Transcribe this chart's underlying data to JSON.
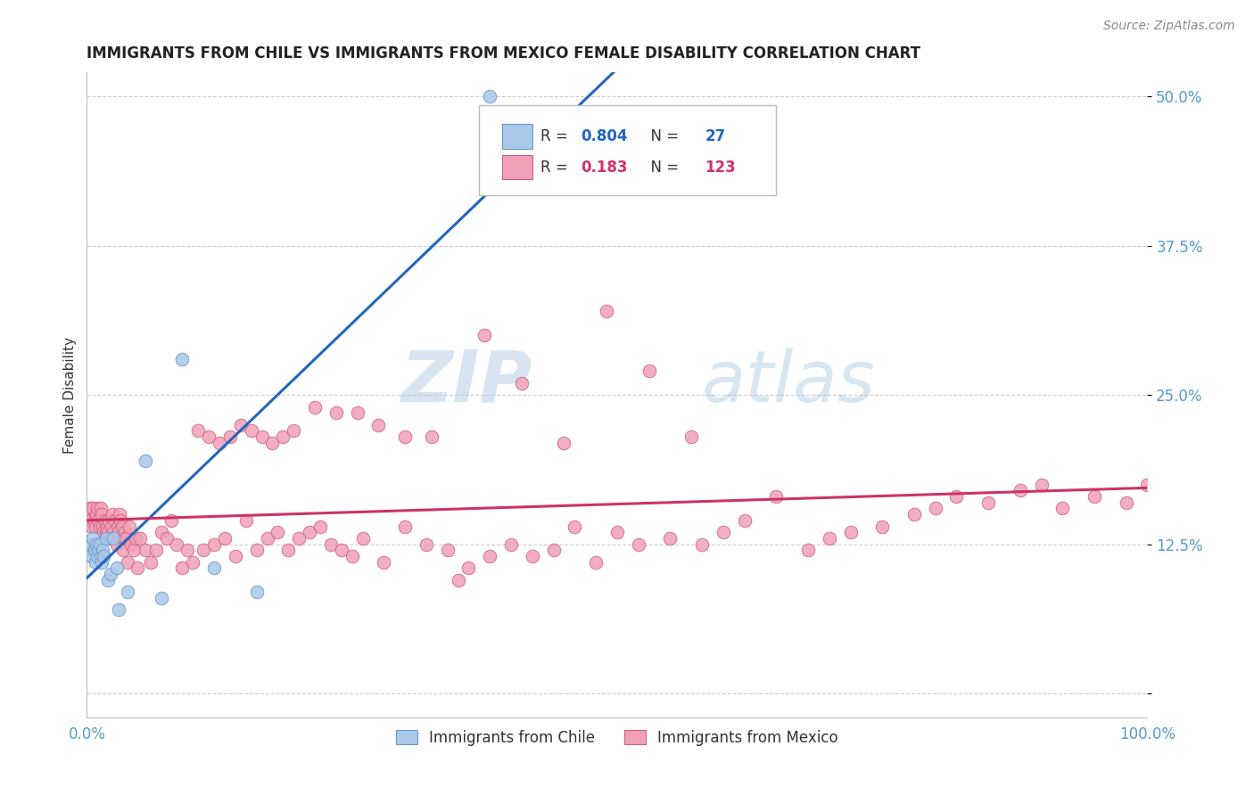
{
  "title": "IMMIGRANTS FROM CHILE VS IMMIGRANTS FROM MEXICO FEMALE DISABILITY CORRELATION CHART",
  "source": "Source: ZipAtlas.com",
  "ylabel": "Female Disability",
  "xlim": [
    0.0,
    1.0
  ],
  "ylim": [
    -0.02,
    0.52
  ],
  "yticks": [
    0.0,
    0.125,
    0.25,
    0.375,
    0.5
  ],
  "ytick_labels": [
    "",
    "12.5%",
    "25.0%",
    "37.5%",
    "50.0%"
  ],
  "chile_color": "#aac8e8",
  "chile_edge_color": "#6699cc",
  "mexico_color": "#f0a0b8",
  "mexico_edge_color": "#d06080",
  "chile_line_color": "#2266bb",
  "mexico_line_color": "#cc3366",
  "R_chile": 0.804,
  "N_chile": 27,
  "R_mexico": 0.183,
  "N_mexico": 123,
  "watermark_zip": "ZIP",
  "watermark_atlas": "atlas",
  "background_color": "#ffffff",
  "chile_x": [
    0.003,
    0.004,
    0.005,
    0.006,
    0.007,
    0.008,
    0.009,
    0.01,
    0.011,
    0.012,
    0.013,
    0.014,
    0.015,
    0.016,
    0.018,
    0.02,
    0.022,
    0.025,
    0.028,
    0.03,
    0.038,
    0.055,
    0.07,
    0.09,
    0.12,
    0.16,
    0.38
  ],
  "chile_y": [
    0.12,
    0.115,
    0.125,
    0.13,
    0.12,
    0.11,
    0.125,
    0.115,
    0.12,
    0.125,
    0.115,
    0.11,
    0.12,
    0.115,
    0.13,
    0.095,
    0.1,
    0.13,
    0.105,
    0.07,
    0.085,
    0.195,
    0.08,
    0.28,
    0.105,
    0.085,
    0.5
  ],
  "mexico_x": [
    0.003,
    0.004,
    0.005,
    0.006,
    0.007,
    0.008,
    0.009,
    0.01,
    0.011,
    0.012,
    0.013,
    0.014,
    0.015,
    0.016,
    0.017,
    0.018,
    0.019,
    0.02,
    0.021,
    0.022,
    0.023,
    0.024,
    0.025,
    0.026,
    0.027,
    0.028,
    0.029,
    0.03,
    0.031,
    0.032,
    0.033,
    0.034,
    0.035,
    0.036,
    0.037,
    0.038,
    0.04,
    0.042,
    0.044,
    0.046,
    0.048,
    0.05,
    0.055,
    0.06,
    0.065,
    0.07,
    0.075,
    0.08,
    0.085,
    0.09,
    0.095,
    0.1,
    0.11,
    0.12,
    0.13,
    0.14,
    0.15,
    0.16,
    0.17,
    0.18,
    0.19,
    0.2,
    0.21,
    0.22,
    0.23,
    0.24,
    0.25,
    0.26,
    0.28,
    0.3,
    0.32,
    0.34,
    0.36,
    0.38,
    0.4,
    0.42,
    0.44,
    0.46,
    0.48,
    0.5,
    0.52,
    0.55,
    0.58,
    0.6,
    0.62,
    0.65,
    0.68,
    0.7,
    0.72,
    0.75,
    0.78,
    0.8,
    0.82,
    0.85,
    0.88,
    0.9,
    0.92,
    0.95,
    0.98,
    1.0,
    0.105,
    0.115,
    0.125,
    0.135,
    0.145,
    0.155,
    0.165,
    0.175,
    0.185,
    0.195,
    0.215,
    0.235,
    0.255,
    0.275,
    0.3,
    0.325,
    0.35,
    0.375,
    0.41,
    0.45,
    0.49,
    0.53,
    0.57
  ],
  "mexico_y": [
    0.155,
    0.145,
    0.14,
    0.155,
    0.145,
    0.14,
    0.15,
    0.155,
    0.145,
    0.14,
    0.155,
    0.15,
    0.14,
    0.135,
    0.145,
    0.135,
    0.14,
    0.135,
    0.145,
    0.13,
    0.14,
    0.15,
    0.135,
    0.13,
    0.145,
    0.125,
    0.14,
    0.135,
    0.15,
    0.145,
    0.14,
    0.12,
    0.13,
    0.135,
    0.13,
    0.11,
    0.14,
    0.125,
    0.12,
    0.13,
    0.105,
    0.13,
    0.12,
    0.11,
    0.12,
    0.135,
    0.13,
    0.145,
    0.125,
    0.105,
    0.12,
    0.11,
    0.12,
    0.125,
    0.13,
    0.115,
    0.145,
    0.12,
    0.13,
    0.135,
    0.12,
    0.13,
    0.135,
    0.14,
    0.125,
    0.12,
    0.115,
    0.13,
    0.11,
    0.14,
    0.125,
    0.12,
    0.105,
    0.115,
    0.125,
    0.115,
    0.12,
    0.14,
    0.11,
    0.135,
    0.125,
    0.13,
    0.125,
    0.135,
    0.145,
    0.165,
    0.12,
    0.13,
    0.135,
    0.14,
    0.15,
    0.155,
    0.165,
    0.16,
    0.17,
    0.175,
    0.155,
    0.165,
    0.16,
    0.175,
    0.22,
    0.215,
    0.21,
    0.215,
    0.225,
    0.22,
    0.215,
    0.21,
    0.215,
    0.22,
    0.24,
    0.235,
    0.235,
    0.225,
    0.215,
    0.215,
    0.095,
    0.3,
    0.26,
    0.21,
    0.32,
    0.27,
    0.215
  ]
}
